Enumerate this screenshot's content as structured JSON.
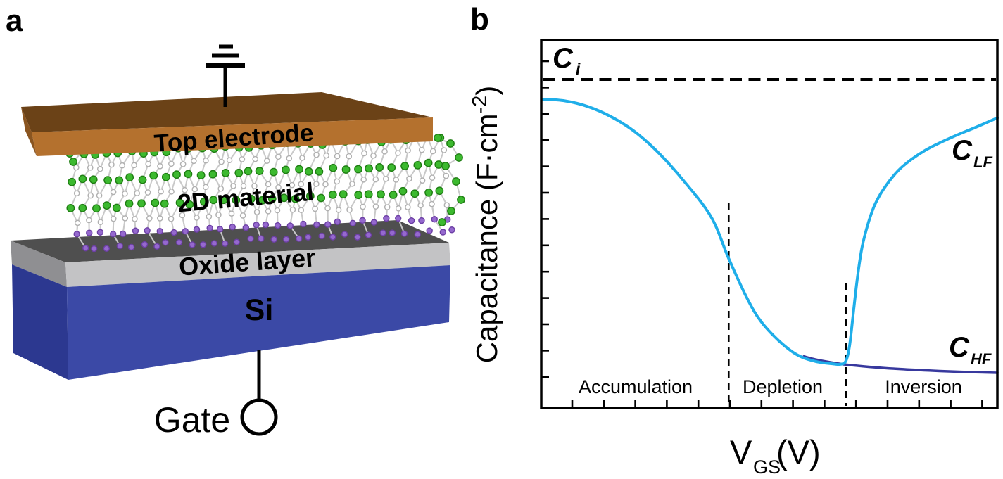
{
  "figure": {
    "panel_a_label": "a",
    "panel_b_label": "b"
  },
  "panel_a": {
    "layers": {
      "top_electrode": "Top electrode",
      "material_2d": "2D material",
      "oxide": "Oxide layer",
      "substrate": "Si"
    },
    "gate_label": "Gate",
    "colors": {
      "electrode_top": "#6B4217",
      "electrode_front": "#B4712E",
      "electrode_side": "#8A5520",
      "oxide_top": "#4F4F4F",
      "oxide_front": "#C3C3C5",
      "oxide_side": "#8F8F92",
      "si_front": "#3B49A6",
      "si_side": "#2C3890",
      "atom_green": "#3CB92F",
      "atom_green_stroke": "#1E7D12",
      "atom_white": "#FFFFFF",
      "atom_white_stroke": "#B0B0B0",
      "atom_purple": "#9569CE",
      "atom_purple_stroke": "#6C3FA4",
      "bond": "#C9C9C9",
      "wire": "#000000"
    }
  },
  "panel_b": {
    "ylabel": {
      "pre": "Capacitance (F·cm",
      "sup": "-2",
      "post": ")"
    },
    "xlabel": {
      "base": "V",
      "sub": "GS",
      "unit": "(V)"
    },
    "ci": {
      "base": "C",
      "sub": "i"
    },
    "clf": {
      "base": "C",
      "sub": "LF"
    },
    "chf": {
      "base": "C",
      "sub": "HF"
    },
    "regions": [
      "Accumulation",
      "Depletion",
      "Inversion"
    ],
    "colors": {
      "lf_curve": "#1FAEE9",
      "hf_curve": "#38399E",
      "dashed": "#000000",
      "frame": "#000000"
    }
  },
  "chart_data": {
    "type": "line",
    "title": "",
    "xlabel": "V_GS (V)",
    "ylabel": "Capacitance (F·cm^-2)",
    "x_units": "arbitrary, axis has unlabeled minor ticks; x normalized 0-1",
    "y_units": "normalized to oxide capacitance C_i = 1.0",
    "grid": false,
    "legend": "inline curve labels C_LF and C_HF",
    "ci_level": 1.0,
    "regions": [
      "Accumulation",
      "Depletion",
      "Inversion"
    ],
    "region_boundaries_x": [
      0.41,
      0.668
    ],
    "boundary_line_top_y": [
      0.623,
      0.379
    ],
    "series": [
      {
        "name": "C_LF",
        "color": "#1FAEE9",
        "points": [
          [
            0.0,
            0.94
          ],
          [
            0.05,
            0.935
          ],
          [
            0.1,
            0.918
          ],
          [
            0.15,
            0.888
          ],
          [
            0.2,
            0.845
          ],
          [
            0.25,
            0.785
          ],
          [
            0.3,
            0.71
          ],
          [
            0.37,
            0.585
          ],
          [
            0.41,
            0.455
          ],
          [
            0.45,
            0.335
          ],
          [
            0.48,
            0.265
          ],
          [
            0.52,
            0.205
          ],
          [
            0.56,
            0.162
          ],
          [
            0.6,
            0.142
          ],
          [
            0.64,
            0.134
          ],
          [
            0.655,
            0.133
          ],
          [
            0.667,
            0.142
          ],
          [
            0.675,
            0.185
          ],
          [
            0.683,
            0.28
          ],
          [
            0.693,
            0.4
          ],
          [
            0.703,
            0.49
          ],
          [
            0.717,
            0.565
          ],
          [
            0.733,
            0.625
          ],
          [
            0.757,
            0.68
          ],
          [
            0.79,
            0.733
          ],
          [
            0.84,
            0.783
          ],
          [
            0.9,
            0.824
          ],
          [
            0.95,
            0.853
          ],
          [
            1.0,
            0.883
          ]
        ]
      },
      {
        "name": "C_HF",
        "color": "#38399E",
        "points": [
          [
            0.575,
            0.157
          ],
          [
            0.6,
            0.148
          ],
          [
            0.63,
            0.14
          ],
          [
            0.668,
            0.132
          ],
          [
            0.72,
            0.125
          ],
          [
            0.78,
            0.119
          ],
          [
            0.85,
            0.114
          ],
          [
            0.92,
            0.11
          ],
          [
            1.0,
            0.107
          ]
        ]
      }
    ]
  }
}
